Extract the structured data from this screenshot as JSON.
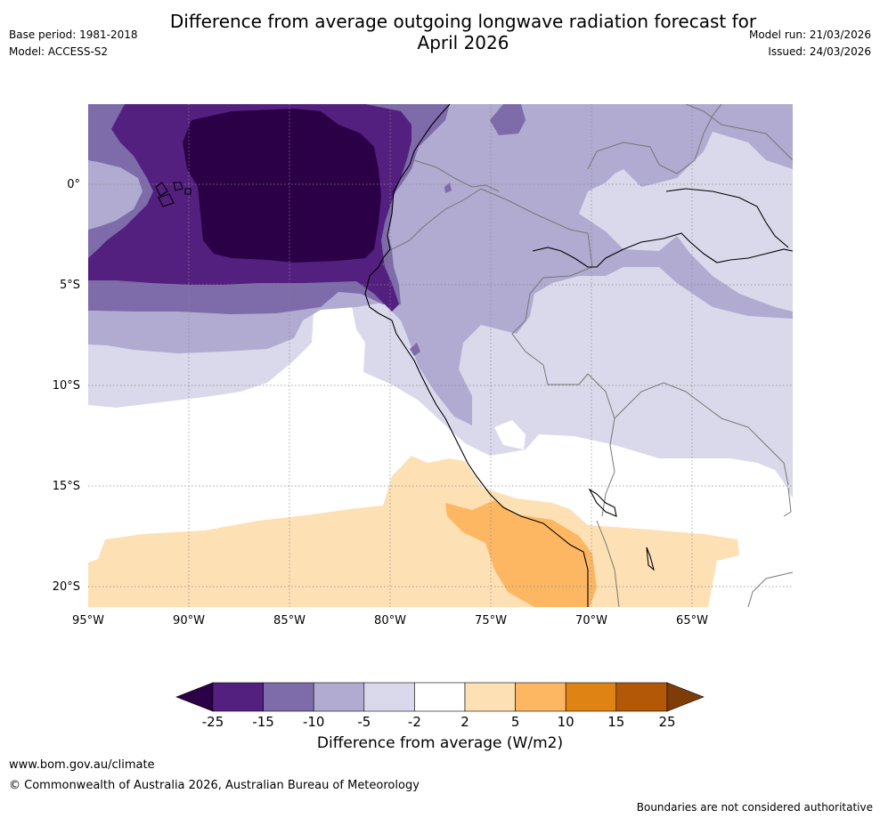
{
  "title": "Difference from average outgoing longwave radiation forecast for April 2026",
  "title_line1": "Difference from average outgoing longwave radiation forecast for",
  "title_line2": "April 2026",
  "meta": {
    "base_period": "Base period: 1981-2018",
    "model": "Model: ACCESS-S2",
    "model_run": "Model run: 21/03/2026",
    "issued": "Issued: 24/03/2026"
  },
  "map": {
    "lat_labels": [
      "0°",
      "5°S",
      "10°S",
      "15°S",
      "20°S"
    ],
    "lon_labels": [
      "95°W",
      "90°W",
      "85°W",
      "80°W",
      "75°W",
      "70°W",
      "65°W"
    ]
  },
  "legend": {
    "title": "Difference from average (W/m2)",
    "ticks": [
      "-25",
      "-15",
      "-10",
      "-5",
      "-2",
      "2",
      "5",
      "10",
      "15",
      "25"
    ],
    "colors": {
      "lt_m25": "#2b0047",
      "m25_m15": "#542080",
      "m15_m10": "#7d6baa",
      "m10_m5": "#b1aad1",
      "m5_m2": "#d9d9eb",
      "m2_2": "#ffffff",
      "p2_5": "#fee0b5",
      "p5_10": "#fdb763",
      "p10_15": "#e08315",
      "p15_25": "#b35806",
      "gt_25": "#7f3b08"
    }
  },
  "footer": {
    "url": "www.bom.gov.au/climate",
    "copyright": "© Commonwealth of Australia 2026, Australian Bureau of Meteorology",
    "disclaimer": "Boundaries are not considered authoritative"
  }
}
